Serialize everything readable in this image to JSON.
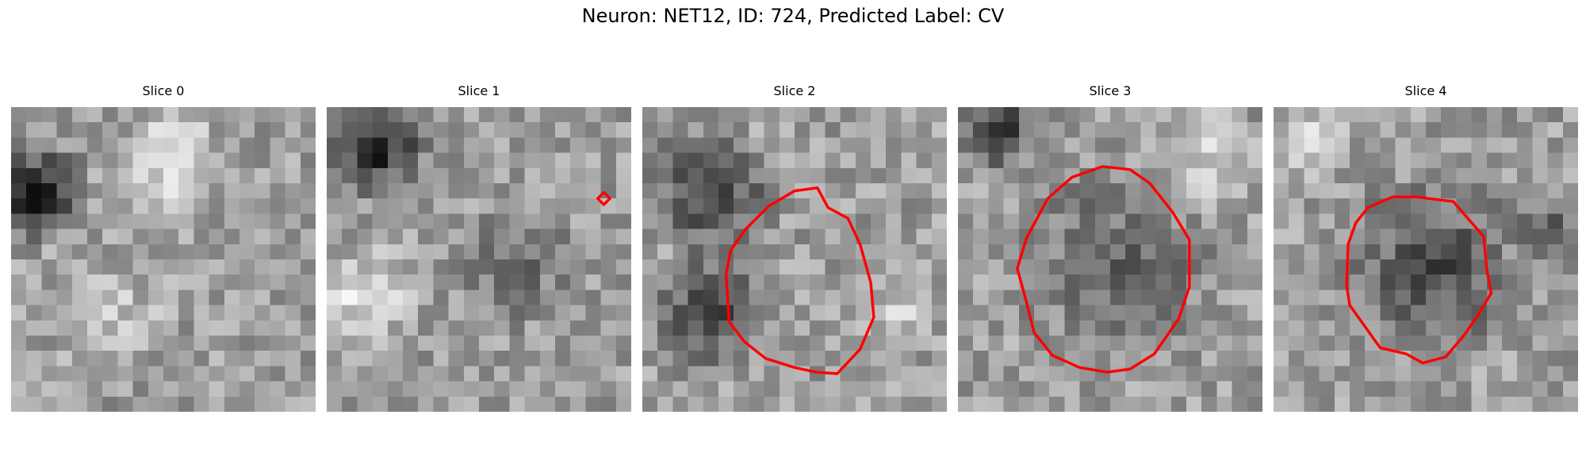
{
  "figure": {
    "title": "Neuron: NET12, ID: 724, Predicted Label: CV"
  },
  "slices": [
    {
      "title": "Slice 0",
      "contour": []
    },
    {
      "title": "Slice 1",
      "contour": [
        [
          18.2,
          5.6
        ],
        [
          18.6,
          6.0
        ],
        [
          18.2,
          6.4
        ],
        [
          17.8,
          6.0
        ]
      ]
    },
    {
      "title": "Slice 2",
      "contour": [
        [
          10.0,
          5.5
        ],
        [
          11.5,
          5.3
        ],
        [
          12.2,
          6.6
        ],
        [
          13.5,
          7.3
        ],
        [
          14.3,
          9.0
        ],
        [
          15.0,
          11.5
        ],
        [
          15.2,
          13.8
        ],
        [
          14.3,
          15.9
        ],
        [
          12.8,
          17.5
        ],
        [
          11.4,
          17.4
        ],
        [
          10.0,
          17.1
        ],
        [
          8.1,
          16.5
        ],
        [
          6.7,
          15.4
        ],
        [
          5.7,
          14.1
        ],
        [
          5.5,
          11.0
        ],
        [
          5.8,
          9.4
        ],
        [
          6.8,
          8.0
        ],
        [
          8.3,
          6.5
        ]
      ]
    },
    {
      "title": "Slice 3",
      "contour": [
        [
          9.5,
          3.9
        ],
        [
          11.3,
          4.1
        ],
        [
          12.6,
          5.0
        ],
        [
          14.1,
          6.9
        ],
        [
          15.2,
          8.7
        ],
        [
          15.2,
          11.8
        ],
        [
          14.5,
          13.9
        ],
        [
          12.9,
          16.2
        ],
        [
          11.3,
          17.2
        ],
        [
          9.8,
          17.4
        ],
        [
          8.0,
          17.1
        ],
        [
          6.2,
          16.3
        ],
        [
          5.0,
          14.8
        ],
        [
          4.5,
          12.8
        ],
        [
          3.9,
          10.6
        ],
        [
          4.5,
          8.6
        ],
        [
          5.9,
          6.0
        ],
        [
          7.5,
          4.6
        ]
      ]
    },
    {
      "title": "Slice 4",
      "contour": [
        [
          9.4,
          5.9
        ],
        [
          11.8,
          6.2
        ],
        [
          13.8,
          8.5
        ],
        [
          14.0,
          10.6
        ],
        [
          14.3,
          12.2
        ],
        [
          13.4,
          13.7
        ],
        [
          12.5,
          15.0
        ],
        [
          11.3,
          16.4
        ],
        [
          9.8,
          16.8
        ],
        [
          8.7,
          16.2
        ],
        [
          7.0,
          15.8
        ],
        [
          6.0,
          14.4
        ],
        [
          5.0,
          13.0
        ],
        [
          4.8,
          11.7
        ],
        [
          4.9,
          9.0
        ],
        [
          5.4,
          7.6
        ],
        [
          6.2,
          6.6
        ],
        [
          7.8,
          5.9
        ]
      ]
    }
  ],
  "colors": {
    "contour": "#ff0000",
    "background": "#ffffff"
  }
}
